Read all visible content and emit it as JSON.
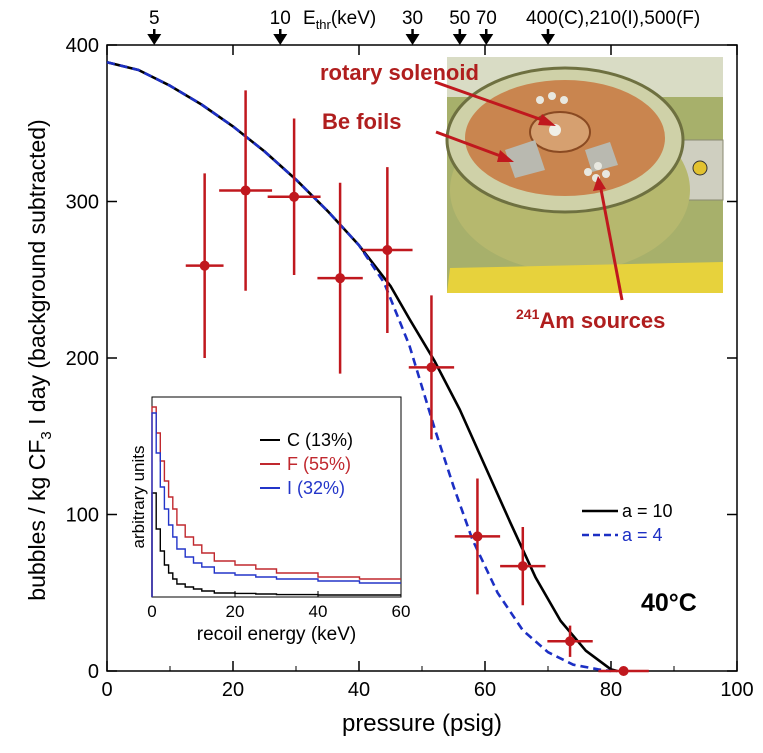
{
  "chart_data": {
    "type": "scatter",
    "title": "",
    "xlabel": "pressure (psig)",
    "ylabel_parts": {
      "main": "bubbles / kg CF",
      "sub": "3",
      "end": " I day (background subtracted)"
    },
    "xlim": [
      0,
      100
    ],
    "ylim": [
      0,
      400
    ],
    "x_ticks": [
      0,
      20,
      40,
      60,
      80,
      100
    ],
    "y_ticks": [
      0,
      100,
      200,
      300,
      400
    ],
    "temperature_label": "40°C",
    "points": [
      {
        "x": 15.5,
        "y": 259,
        "xerr": 3.0,
        "yerr": 59
      },
      {
        "x": 22.0,
        "y": 307,
        "xerr": 4.2,
        "yerr": 64
      },
      {
        "x": 29.7,
        "y": 303,
        "xerr": 4.2,
        "yerr": 50
      },
      {
        "x": 37.0,
        "y": 251,
        "xerr": 3.6,
        "yerr": 61
      },
      {
        "x": 44.5,
        "y": 269,
        "xerr": 4.0,
        "yerr": 53
      },
      {
        "x": 51.5,
        "y": 194,
        "xerr": 3.6,
        "yerr": 46
      },
      {
        "x": 58.8,
        "y": 86,
        "xerr": 3.6,
        "yerr": 37
      },
      {
        "x": 66.0,
        "y": 67,
        "xerr": 3.6,
        "yerr": 25
      },
      {
        "x": 73.5,
        "y": 19,
        "xerr": 3.6,
        "yerr": 10
      },
      {
        "x": 82.0,
        "y": 0,
        "xerr": 4.0,
        "yerr": 0
      }
    ],
    "series": [
      {
        "name": "a = 10",
        "style": "solid",
        "color": "#000000",
        "x": [
          0,
          5,
          10,
          15,
          20,
          25,
          30,
          35,
          40,
          45,
          48,
          52,
          56,
          60,
          64,
          68,
          72,
          76,
          80,
          81
        ],
        "y": [
          389,
          384,
          374,
          362,
          348,
          332,
          314,
          294,
          272,
          246,
          225,
          198,
          167,
          131,
          95,
          60,
          32,
          13,
          1,
          0
        ]
      },
      {
        "name": "a = 4",
        "style": "dashed",
        "color": "#1c2fc4",
        "x": [
          0,
          5,
          10,
          15,
          20,
          25,
          30,
          35,
          40,
          44,
          48,
          52,
          55,
          58,
          62,
          66,
          70,
          74,
          78,
          80
        ],
        "y": [
          389,
          384,
          374,
          362,
          348,
          332,
          314,
          294,
          272,
          248,
          208,
          155,
          118,
          84,
          50,
          26,
          12,
          4,
          1,
          0
        ]
      }
    ],
    "threshold_axis": {
      "label_main": "E",
      "label_sub": "thr",
      "label_end": "(keV)",
      "markers": [
        {
          "x": 7.5,
          "label": "5"
        },
        {
          "x": 27.5,
          "label": "10"
        },
        {
          "x": 48.5,
          "label": "30"
        },
        {
          "x": 56.0,
          "label": "50"
        },
        {
          "x": 60.2,
          "label": "70"
        },
        {
          "x": 70.0,
          "label": "400(C),210(I),500(F)"
        }
      ]
    },
    "inset": {
      "xlabel": "recoil energy (keV)",
      "ylabel": "arbitrary units",
      "xlim": [
        0,
        60
      ],
      "x_ticks": [
        0,
        20,
        40,
        60
      ],
      "series": [
        {
          "name": "C",
          "fraction": "(13%)",
          "color": "#000000",
          "x": [
            1,
            2,
            3,
            4,
            5,
            6,
            8,
            10,
            12,
            15,
            20,
            25,
            30,
            40,
            50,
            60
          ],
          "y": [
            0.52,
            0.34,
            0.23,
            0.16,
            0.12,
            0.09,
            0.065,
            0.05,
            0.04,
            0.03,
            0.02,
            0.018,
            0.015,
            0.012,
            0.01,
            0.01
          ]
        },
        {
          "name": "F",
          "fraction": "(55%)",
          "color": "#c0282e",
          "x": [
            1,
            2,
            3,
            4,
            5,
            6,
            8,
            10,
            12,
            15,
            20,
            25,
            30,
            40,
            50,
            60
          ],
          "y": [
            0.95,
            0.82,
            0.68,
            0.58,
            0.5,
            0.44,
            0.36,
            0.3,
            0.26,
            0.22,
            0.18,
            0.16,
            0.14,
            0.12,
            0.1,
            0.09
          ]
        },
        {
          "name": "I",
          "fraction": "(32%)",
          "color": "#2335c9",
          "x": [
            1,
            2,
            3,
            4,
            5,
            6,
            8,
            10,
            12,
            15,
            20,
            25,
            30,
            40,
            50,
            60
          ],
          "y": [
            0.92,
            0.72,
            0.55,
            0.44,
            0.36,
            0.3,
            0.24,
            0.2,
            0.17,
            0.15,
            0.12,
            0.11,
            0.1,
            0.09,
            0.08,
            0.07
          ]
        }
      ]
    },
    "photo_annotations": [
      {
        "text": "rotary solenoid"
      },
      {
        "text": "Be foils"
      },
      {
        "sup": "241",
        "text": "Am sources"
      }
    ],
    "colors": {
      "points": "#c0181e",
      "a10": "#000000",
      "a4": "#1c2fc4",
      "annotation": "#b01e1e"
    }
  }
}
